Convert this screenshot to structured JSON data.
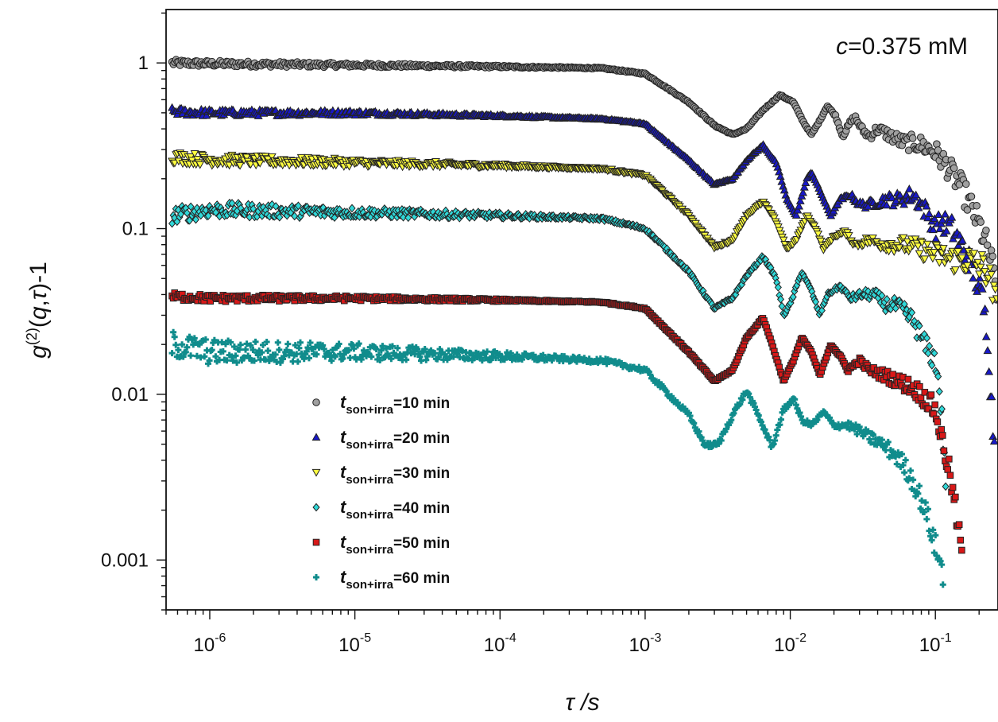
{
  "chart_data": {
    "type": "scatter",
    "title": "",
    "xlabel": "τ /s",
    "ylabel": "g(2)(q,τ)-1",
    "xscale": "log",
    "yscale": "log",
    "xlim": [
      5e-07,
      0.27
    ],
    "ylim": [
      0.0005,
      2.1
    ],
    "x_ticks": [
      {
        "value": 1e-06,
        "base": "10",
        "exp": "-6"
      },
      {
        "value": 1e-05,
        "base": "10",
        "exp": "-5"
      },
      {
        "value": 0.0001,
        "base": "10",
        "exp": "-4"
      },
      {
        "value": 0.001,
        "base": "10",
        "exp": "-3"
      },
      {
        "value": 0.01,
        "base": "10",
        "exp": "-2"
      },
      {
        "value": 0.1,
        "base": "10",
        "exp": "-1"
      }
    ],
    "y_ticks": [
      {
        "value": 1,
        "label": "1"
      },
      {
        "value": 0.1,
        "label": "0.1"
      },
      {
        "value": 0.01,
        "label": "0.01"
      },
      {
        "value": 0.001,
        "label": "0.001"
      }
    ],
    "annotation": {
      "var": "c",
      "rest": "=0.375 mM"
    },
    "legend_position": "lower-left",
    "grid": false,
    "series": [
      {
        "name_var": "t",
        "name_sub": "son+irra",
        "name_rest": "=10 min",
        "marker": "circle",
        "color": "#a0a0a0",
        "points": [
          [
            5.5e-07,
            1.0
          ],
          [
            1e-06,
            0.99
          ],
          [
            1e-05,
            0.97
          ],
          [
            0.0001,
            0.95
          ],
          [
            0.0005,
            0.93
          ],
          [
            0.001,
            0.86
          ],
          [
            0.002,
            0.58
          ],
          [
            0.003,
            0.42
          ],
          [
            0.004,
            0.37
          ],
          [
            0.005,
            0.4
          ],
          [
            0.0065,
            0.52
          ],
          [
            0.0085,
            0.64
          ],
          [
            0.0105,
            0.58
          ],
          [
            0.0125,
            0.43
          ],
          [
            0.014,
            0.37
          ],
          [
            0.016,
            0.45
          ],
          [
            0.018,
            0.55
          ],
          [
            0.0205,
            0.48
          ],
          [
            0.023,
            0.36
          ],
          [
            0.026,
            0.44
          ],
          [
            0.028,
            0.47
          ],
          [
            0.031,
            0.4
          ],
          [
            0.035,
            0.36
          ],
          [
            0.04,
            0.4
          ],
          [
            0.05,
            0.36
          ],
          [
            0.06,
            0.33
          ],
          [
            0.07,
            0.33
          ],
          [
            0.08,
            0.32
          ],
          [
            0.1,
            0.29
          ],
          [
            0.12,
            0.24
          ],
          [
            0.15,
            0.18
          ],
          [
            0.18,
            0.13
          ],
          [
            0.21,
            0.095
          ],
          [
            0.24,
            0.065
          ],
          [
            0.27,
            0.04
          ]
        ]
      },
      {
        "name_var": "t",
        "name_sub": "son+irra",
        "name_rest": "=20 min",
        "marker": "triangle-up",
        "color": "#1818c8",
        "points": [
          [
            5.5e-07,
            0.51
          ],
          [
            1e-06,
            0.5
          ],
          [
            1e-05,
            0.5
          ],
          [
            0.0001,
            0.48
          ],
          [
            0.0005,
            0.46
          ],
          [
            0.001,
            0.43
          ],
          [
            0.002,
            0.26
          ],
          [
            0.003,
            0.185
          ],
          [
            0.004,
            0.2
          ],
          [
            0.005,
            0.26
          ],
          [
            0.0065,
            0.32
          ],
          [
            0.008,
            0.25
          ],
          [
            0.0095,
            0.15
          ],
          [
            0.011,
            0.12
          ],
          [
            0.013,
            0.2
          ],
          [
            0.014,
            0.22
          ],
          [
            0.016,
            0.17
          ],
          [
            0.019,
            0.12
          ],
          [
            0.022,
            0.15
          ],
          [
            0.026,
            0.16
          ],
          [
            0.03,
            0.14
          ],
          [
            0.035,
            0.14
          ],
          [
            0.045,
            0.15
          ],
          [
            0.055,
            0.15
          ],
          [
            0.07,
            0.16
          ],
          [
            0.08,
            0.14
          ],
          [
            0.09,
            0.12
          ],
          [
            0.1,
            0.1
          ],
          [
            0.11,
            0.11
          ],
          [
            0.13,
            0.1
          ],
          [
            0.15,
            0.08
          ],
          [
            0.17,
            0.065
          ],
          [
            0.19,
            0.05
          ],
          [
            0.21,
            0.038
          ],
          [
            0.23,
            0.022
          ],
          [
            0.245,
            0.008
          ],
          [
            0.255,
            0.005
          ],
          [
            0.26,
            0.001
          ]
        ]
      },
      {
        "name_var": "t",
        "name_sub": "son+irra",
        "name_rest": "=30 min",
        "marker": "triangle-down",
        "color": "#ffff40",
        "points": [
          [
            5.5e-07,
            0.27
          ],
          [
            1e-06,
            0.26
          ],
          [
            1e-05,
            0.25
          ],
          [
            0.0001,
            0.24
          ],
          [
            0.0005,
            0.23
          ],
          [
            0.001,
            0.21
          ],
          [
            0.002,
            0.12
          ],
          [
            0.003,
            0.077
          ],
          [
            0.004,
            0.085
          ],
          [
            0.005,
            0.12
          ],
          [
            0.0065,
            0.145
          ],
          [
            0.008,
            0.11
          ],
          [
            0.0095,
            0.075
          ],
          [
            0.011,
            0.085
          ],
          [
            0.013,
            0.12
          ],
          [
            0.015,
            0.1
          ],
          [
            0.017,
            0.075
          ],
          [
            0.02,
            0.09
          ],
          [
            0.024,
            0.095
          ],
          [
            0.028,
            0.08
          ],
          [
            0.035,
            0.085
          ],
          [
            0.045,
            0.08
          ],
          [
            0.06,
            0.08
          ],
          [
            0.08,
            0.075
          ],
          [
            0.1,
            0.07
          ],
          [
            0.13,
            0.065
          ],
          [
            0.16,
            0.065
          ],
          [
            0.2,
            0.06
          ],
          [
            0.23,
            0.055
          ],
          [
            0.25,
            0.04
          ],
          [
            0.27,
            0.03
          ]
        ]
      },
      {
        "name_var": "t",
        "name_sub": "son+irra",
        "name_rest": "=40 min",
        "marker": "diamond",
        "color": "#30d8d8",
        "points": [
          [
            5.5e-07,
            0.12
          ],
          [
            1e-06,
            0.13
          ],
          [
            1e-05,
            0.125
          ],
          [
            0.0001,
            0.12
          ],
          [
            0.0005,
            0.115
          ],
          [
            0.001,
            0.1
          ],
          [
            0.002,
            0.055
          ],
          [
            0.003,
            0.033
          ],
          [
            0.004,
            0.038
          ],
          [
            0.005,
            0.052
          ],
          [
            0.0065,
            0.068
          ],
          [
            0.008,
            0.05
          ],
          [
            0.009,
            0.03
          ],
          [
            0.01,
            0.035
          ],
          [
            0.012,
            0.055
          ],
          [
            0.014,
            0.042
          ],
          [
            0.016,
            0.03
          ],
          [
            0.018,
            0.04
          ],
          [
            0.022,
            0.045
          ],
          [
            0.026,
            0.038
          ],
          [
            0.031,
            0.04
          ],
          [
            0.038,
            0.04
          ],
          [
            0.045,
            0.035
          ],
          [
            0.055,
            0.034
          ],
          [
            0.07,
            0.028
          ],
          [
            0.08,
            0.022
          ],
          [
            0.09,
            0.018
          ],
          [
            0.1,
            0.016
          ],
          [
            0.105,
            0.012
          ],
          [
            0.11,
            0.008
          ],
          [
            0.115,
            0.004
          ],
          [
            0.12,
            0.0025
          ]
        ]
      },
      {
        "name_var": "t",
        "name_sub": "son+irra",
        "name_rest": "=50 min",
        "marker": "square",
        "color": "#d81818",
        "points": [
          [
            5.5e-07,
            0.039
          ],
          [
            1e-06,
            0.038
          ],
          [
            1e-05,
            0.038
          ],
          [
            0.0001,
            0.037
          ],
          [
            0.0005,
            0.036
          ],
          [
            0.001,
            0.033
          ],
          [
            0.002,
            0.018
          ],
          [
            0.003,
            0.012
          ],
          [
            0.004,
            0.014
          ],
          [
            0.005,
            0.022
          ],
          [
            0.0065,
            0.029
          ],
          [
            0.0075,
            0.02
          ],
          [
            0.009,
            0.012
          ],
          [
            0.0105,
            0.016
          ],
          [
            0.012,
            0.022
          ],
          [
            0.014,
            0.018
          ],
          [
            0.016,
            0.013
          ],
          [
            0.019,
            0.02
          ],
          [
            0.022,
            0.017
          ],
          [
            0.025,
            0.014
          ],
          [
            0.03,
            0.016
          ],
          [
            0.035,
            0.014
          ],
          [
            0.045,
            0.013
          ],
          [
            0.055,
            0.012
          ],
          [
            0.07,
            0.011
          ],
          [
            0.085,
            0.0095
          ],
          [
            0.1,
            0.008
          ],
          [
            0.11,
            0.0055
          ],
          [
            0.12,
            0.004
          ],
          [
            0.13,
            0.0028
          ],
          [
            0.14,
            0.0018
          ],
          [
            0.15,
            0.0012
          ],
          [
            0.155,
            0.0008
          ]
        ]
      },
      {
        "name_var": "t",
        "name_sub": "son+irra",
        "name_rest": "=60 min",
        "marker": "plus",
        "color": "#108c8c",
        "points": [
          [
            5.5e-07,
            0.02
          ],
          [
            1e-06,
            0.018
          ],
          [
            1e-05,
            0.018
          ],
          [
            0.0001,
            0.017
          ],
          [
            0.0005,
            0.016
          ],
          [
            0.001,
            0.014
          ],
          [
            0.002,
            0.0075
          ],
          [
            0.0026,
            0.0049
          ],
          [
            0.0032,
            0.005
          ],
          [
            0.004,
            0.0075
          ],
          [
            0.005,
            0.0105
          ],
          [
            0.006,
            0.0075
          ],
          [
            0.0075,
            0.0048
          ],
          [
            0.009,
            0.008
          ],
          [
            0.0105,
            0.0095
          ],
          [
            0.012,
            0.007
          ],
          [
            0.014,
            0.0065
          ],
          [
            0.017,
            0.0078
          ],
          [
            0.02,
            0.0065
          ],
          [
            0.025,
            0.0065
          ],
          [
            0.03,
            0.006
          ],
          [
            0.035,
            0.0055
          ],
          [
            0.04,
            0.0052
          ],
          [
            0.05,
            0.0045
          ],
          [
            0.06,
            0.0038
          ],
          [
            0.07,
            0.003
          ],
          [
            0.08,
            0.0023
          ],
          [
            0.09,
            0.0017
          ],
          [
            0.1,
            0.0012
          ],
          [
            0.11,
            0.0009
          ],
          [
            0.115,
            0.0007
          ]
        ]
      }
    ]
  }
}
